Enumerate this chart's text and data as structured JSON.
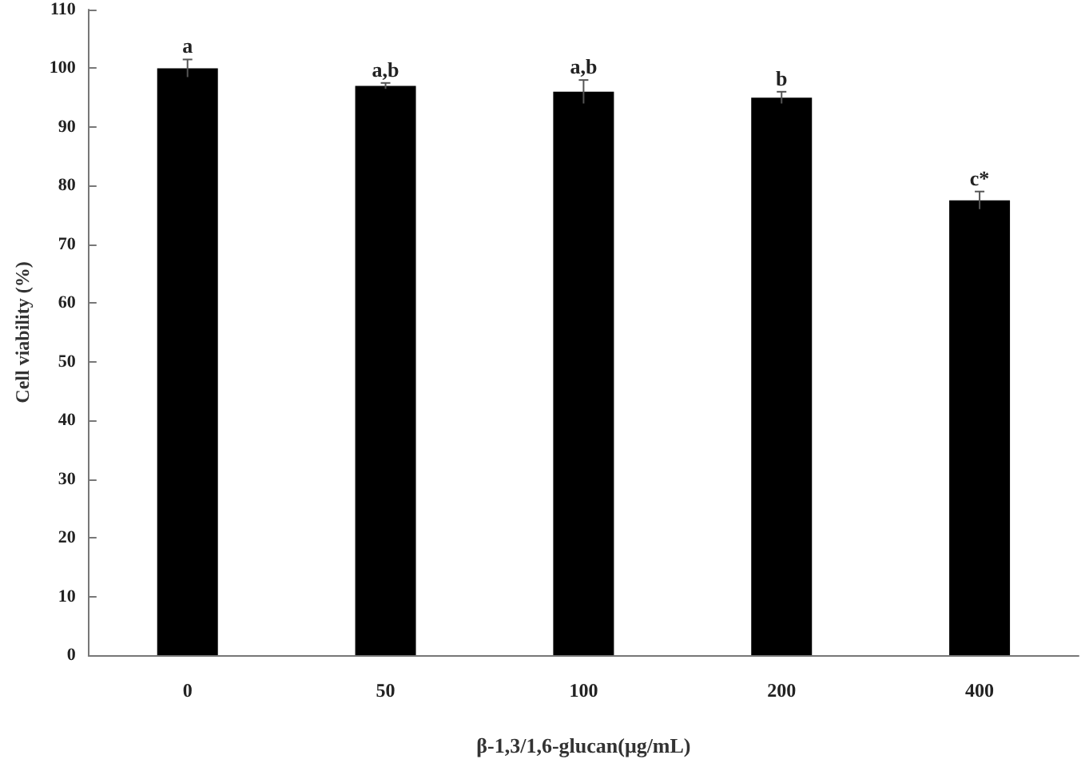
{
  "chart_data": {
    "type": "bar",
    "xlabel": "β-1,3/1,6-glucan(μg/mL)",
    "ylabel": "Cell viability (%)",
    "categories": [
      "0",
      "50",
      "100",
      "200",
      "400"
    ],
    "values": [
      100,
      97,
      96,
      95,
      77.5
    ],
    "errors": [
      1.5,
      0.5,
      2,
      1,
      1.5
    ],
    "color": "#000000",
    "ylim": [
      0,
      110
    ],
    "yticks": [
      0,
      10,
      20,
      30,
      40,
      50,
      60,
      70,
      80,
      90,
      100,
      110
    ],
    "grid": false,
    "annotations": [
      {
        "text": "a",
        "x": "0",
        "y": 101.5
      },
      {
        "text": "a,b",
        "x": "50",
        "y": 97.5
      },
      {
        "text": "a,b",
        "x": "100",
        "y": 98
      },
      {
        "text": "b",
        "x": "200",
        "y": 96
      },
      {
        "text": "c*",
        "x": "400",
        "y": 79
      }
    ]
  }
}
